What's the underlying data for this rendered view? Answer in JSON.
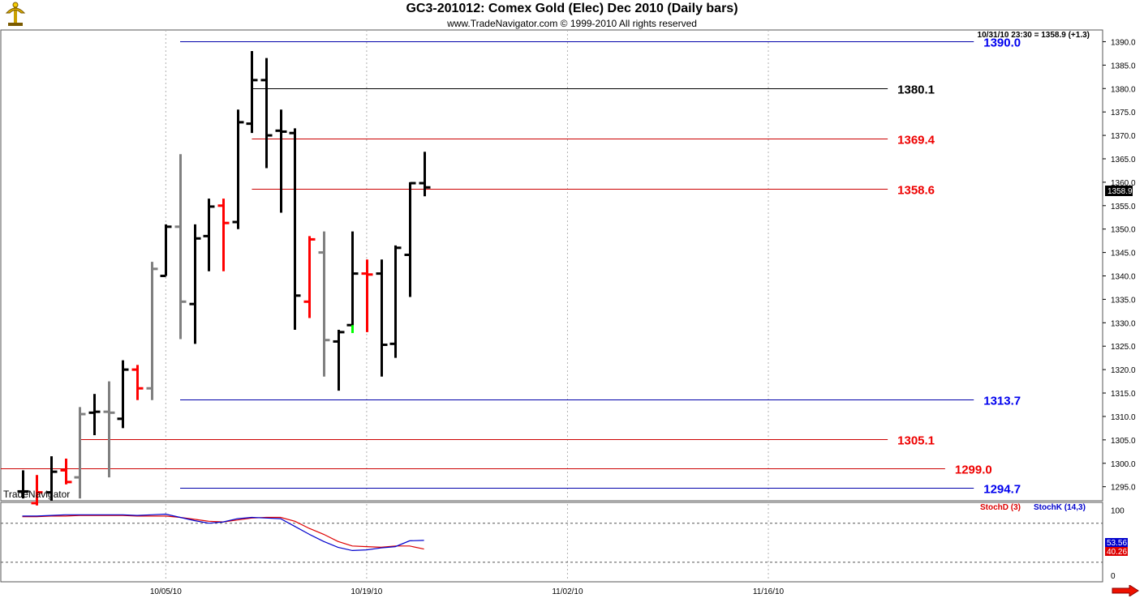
{
  "header": {
    "title": "GC3-201012:  Comex Gold (Elec) Dec 2010  (Daily bars)",
    "copyright": "www.TradeNavigator.com © 1999-2010 All rights reserved",
    "last_quote": "10/31/10 23:30 = 1358.9 (+1.3)",
    "watermark": "TradeNavigator"
  },
  "colors": {
    "up_bar": "#000000",
    "down_bar": "#ff0000",
    "neutral_bar": "#808080",
    "green_tick": "#00ff00",
    "support_line": "#0000aa",
    "resistance_line": "#cc0000",
    "stoch_d": "#dd0000",
    "stoch_k": "#0000cc"
  },
  "chart_data": [
    {
      "type": "ohlc",
      "title": "GC3-201012:  Comex Gold (Elec) Dec 2010  (Daily bars)",
      "x_tick_labels": [
        "10/05/10",
        "10/19/10",
        "11/02/10",
        "11/16/10"
      ],
      "y_tick_labels": [
        "1295.0",
        "1300.0",
        "1305.0",
        "1310.0",
        "1315.0",
        "1320.0",
        "1325.0",
        "1330.0",
        "1335.0",
        "1340.0",
        "1345.0",
        "1350.0",
        "1355.0",
        "1360.0",
        "1365.0",
        "1370.0",
        "1375.0",
        "1380.0",
        "1385.0",
        "1390.0"
      ],
      "ylim": [
        1292.0,
        1392.5
      ],
      "x_range_days": [
        -67.5,
        9.3
      ],
      "last_price": "1358.9",
      "bars": [
        {
          "d": -66,
          "o": 1294.0,
          "h": 1298.5,
          "l": 1292.5,
          "c": 1294.0,
          "color": "up"
        },
        {
          "d": -65,
          "o": 1291.5,
          "h": 1297.5,
          "l": 1291.0,
          "c": 1293.8,
          "color": "down"
        },
        {
          "d": -64,
          "o": 1293.8,
          "h": 1301.5,
          "l": 1292.0,
          "c": 1298.2,
          "color": "up"
        },
        {
          "d": -63,
          "o": 1298.5,
          "h": 1301.0,
          "l": 1295.5,
          "c": 1296.0,
          "color": "down"
        },
        {
          "d": -62,
          "o": 1297.0,
          "h": 1312.0,
          "l": 1292.5,
          "c": 1310.5,
          "color": "neutral"
        },
        {
          "d": -61,
          "o": 1310.8,
          "h": 1314.8,
          "l": 1306.0,
          "c": 1311.0,
          "color": "up"
        },
        {
          "d": -60,
          "o": 1311.0,
          "h": 1317.5,
          "l": 1297.0,
          "c": 1310.8,
          "color": "neutral"
        },
        {
          "d": -59,
          "o": 1309.5,
          "h": 1322.0,
          "l": 1307.5,
          "c": 1320.0,
          "color": "up"
        },
        {
          "d": -58,
          "o": 1320.0,
          "h": 1321.0,
          "l": 1313.5,
          "c": 1316.0,
          "color": "down"
        },
        {
          "d": -57,
          "o": 1316.0,
          "h": 1343.0,
          "l": 1313.5,
          "c": 1341.5,
          "color": "neutral"
        },
        {
          "d": -56,
          "o": 1340.0,
          "h": 1351.0,
          "l": 1340.0,
          "c": 1350.5,
          "color": "up"
        },
        {
          "d": -55,
          "o": 1350.5,
          "h": 1366.0,
          "l": 1326.5,
          "c": 1334.5,
          "color": "neutral"
        },
        {
          "d": -54,
          "o": 1334.0,
          "h": 1351.0,
          "l": 1325.5,
          "c": 1348.0,
          "color": "up"
        },
        {
          "d": -53,
          "o": 1348.5,
          "h": 1356.5,
          "l": 1341.0,
          "c": 1354.8,
          "color": "up"
        },
        {
          "d": -52,
          "o": 1355.0,
          "h": 1356.5,
          "l": 1341.0,
          "c": 1351.3,
          "color": "down"
        },
        {
          "d": -51,
          "o": 1351.5,
          "h": 1375.5,
          "l": 1350.0,
          "c": 1372.8,
          "color": "up"
        },
        {
          "d": -50,
          "o": 1372.5,
          "h": 1388.0,
          "l": 1370.5,
          "c": 1381.8,
          "color": "up"
        },
        {
          "d": -49,
          "o": 1381.8,
          "h": 1386.5,
          "l": 1363.0,
          "c": 1370.0,
          "color": "up"
        },
        {
          "d": -48,
          "o": 1371.0,
          "h": 1375.5,
          "l": 1353.5,
          "c": 1370.8,
          "color": "up"
        },
        {
          "d": -47,
          "o": 1370.5,
          "h": 1371.5,
          "l": 1328.5,
          "c": 1335.8,
          "color": "up"
        },
        {
          "d": -46,
          "o": 1334.5,
          "h": 1348.5,
          "l": 1331.0,
          "c": 1347.8,
          "color": "down"
        },
        {
          "d": -45,
          "o": 1345.0,
          "h": 1349.5,
          "l": 1318.5,
          "c": 1326.3,
          "color": "neutral"
        },
        {
          "d": -44,
          "o": 1326.0,
          "h": 1328.5,
          "l": 1315.5,
          "c": 1328.0,
          "color": "up"
        },
        {
          "d": -43,
          "o": 1329.5,
          "h": 1349.5,
          "l": 1328.0,
          "c": 1340.5,
          "color": "up"
        },
        {
          "d": -42,
          "o": 1340.5,
          "h": 1343.5,
          "l": 1328.0,
          "c": 1340.3,
          "color": "down"
        },
        {
          "d": -41,
          "o": 1340.5,
          "h": 1343.5,
          "l": 1318.5,
          "c": 1325.3,
          "color": "up"
        },
        {
          "d": -40,
          "o": 1325.5,
          "h": 1346.5,
          "l": 1322.5,
          "c": 1346.0,
          "color": "up"
        },
        {
          "d": -39,
          "o": 1344.5,
          "h": 1360.0,
          "l": 1335.5,
          "c": 1359.8,
          "color": "up"
        },
        {
          "d": -38,
          "o": 1359.8,
          "h": 1366.5,
          "l": 1357.0,
          "c": 1358.9,
          "color": "up"
        }
      ],
      "levels": [
        {
          "value": 1390.0,
          "label": "1390.0",
          "kind": "support",
          "from_day": -55,
          "label_day": 1
        },
        {
          "value": 1380.1,
          "label": "1380.1",
          "kind": "black",
          "from_day": -50,
          "label_day": -5
        },
        {
          "value": 1369.4,
          "label": "1369.4",
          "kind": "resistance",
          "from_day": -50,
          "label_day": -5
        },
        {
          "value": 1358.6,
          "label": "1358.6",
          "kind": "resistance",
          "from_day": -50,
          "label_day": -5
        },
        {
          "value": 1313.7,
          "label": "1313.7",
          "kind": "support",
          "from_day": -55,
          "label_day": 1
        },
        {
          "value": 1305.1,
          "label": "1305.1",
          "kind": "resistance",
          "from_day": -62,
          "label_day": -5
        },
        {
          "value": 1299.0,
          "label": "1299.0",
          "kind": "resistance",
          "from_day": -67.5,
          "label_day": -1
        },
        {
          "value": 1294.7,
          "label": "1294.7",
          "kind": "support",
          "from_day": -55,
          "label_day": 1
        }
      ]
    },
    {
      "type": "line",
      "legend": [
        "StochD (3)",
        "StochK (14,3)"
      ],
      "y_tick_labels": [
        "100",
        "0"
      ],
      "ylim": [
        -10,
        112
      ],
      "reference_lines": [
        80,
        20
      ],
      "last_values": {
        "k": "53.56",
        "d": "40.26"
      },
      "series": [
        {
          "name": "StochD (3)",
          "values": [
            [
              -66,
              90.0
            ],
            [
              -65,
              90.0
            ],
            [
              -64,
              91.0
            ],
            [
              -63,
              91.0
            ],
            [
              -62,
              92.0
            ],
            [
              -61,
              92.0
            ],
            [
              -60,
              92.0
            ],
            [
              -59,
              92.0
            ],
            [
              -58,
              91.0
            ],
            [
              -57,
              91.0
            ],
            [
              -56,
              91.0
            ],
            [
              -55,
              89.0
            ],
            [
              -54,
              86.0
            ],
            [
              -53,
              83.0
            ],
            [
              -52,
              82.0
            ],
            [
              -51,
              85.0
            ],
            [
              -50,
              88.0
            ],
            [
              -49,
              89.0
            ],
            [
              -48,
              89.0
            ],
            [
              -47,
              83.0
            ],
            [
              -46,
              72.0
            ],
            [
              -45,
              63.0
            ],
            [
              -44,
              52.0
            ],
            [
              -43,
              45.0
            ],
            [
              -42,
              44.0
            ],
            [
              -41,
              43.0
            ],
            [
              -40,
              45.0
            ],
            [
              -39,
              45.0
            ],
            [
              -38,
              40.26
            ]
          ]
        },
        {
          "name": "StochK (14,3)",
          "values": [
            [
              -66,
              91.0
            ],
            [
              -65,
              91.0
            ],
            [
              -64,
              92.0
            ],
            [
              -63,
              93.0
            ],
            [
              -62,
              93.0
            ],
            [
              -61,
              93.0
            ],
            [
              -60,
              93.0
            ],
            [
              -59,
              93.0
            ],
            [
              -58,
              92.0
            ],
            [
              -57,
              93.0
            ],
            [
              -56,
              94.0
            ],
            [
              -55,
              89.0
            ],
            [
              -54,
              84.0
            ],
            [
              -53,
              80.0
            ],
            [
              -52,
              82.0
            ],
            [
              -51,
              87.0
            ],
            [
              -50,
              89.0
            ],
            [
              -49,
              88.0
            ],
            [
              -48,
              87.0
            ],
            [
              -47,
              75.0
            ],
            [
              -46,
              63.0
            ],
            [
              -45,
              52.0
            ],
            [
              -44,
              43.0
            ],
            [
              -43,
              38.0
            ],
            [
              -42,
              39.0
            ],
            [
              -41,
              42.0
            ],
            [
              -40,
              44.0
            ],
            [
              -39,
              53.0
            ],
            [
              -38,
              53.56
            ]
          ]
        }
      ]
    }
  ]
}
